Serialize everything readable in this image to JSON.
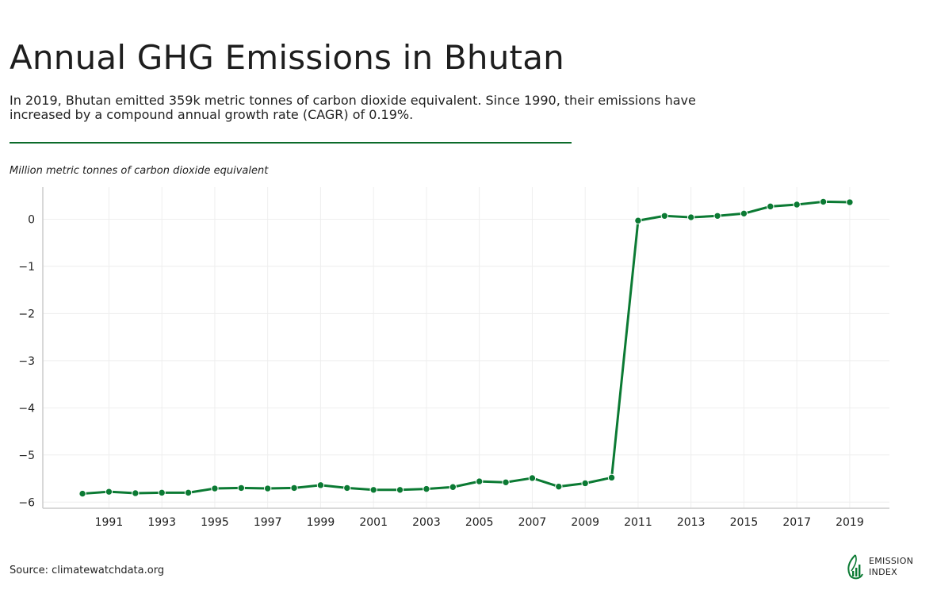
{
  "header": {
    "title": "Annual GHG Emissions in Bhutan",
    "subtitle": "In 2019, Bhutan emitted 359k metric tonnes of carbon dioxide equivalent. Since 1990, their emissions have increased by a compound annual growth rate (CAGR) of 0.19%.",
    "unit_label": "Million metric tonnes of carbon dioxide equivalent"
  },
  "footer": {
    "source": "Source: climatewatchdata.org",
    "brand_line1": "EMISSION",
    "brand_line2": "INDEX",
    "brand_icon": "leaf-chart-icon"
  },
  "colors": {
    "accent": "#0b7a33",
    "divider": "#0b6b2a",
    "grid": "#eeeeee",
    "axis": "#cccccc"
  },
  "chart_data": {
    "type": "line",
    "title": "",
    "xlabel": "",
    "ylabel": "Million metric tonnes of carbon dioxide equivalent",
    "x": [
      1990,
      1991,
      1992,
      1993,
      1994,
      1995,
      1996,
      1997,
      1998,
      1999,
      2000,
      2001,
      2002,
      2003,
      2004,
      2005,
      2006,
      2007,
      2008,
      2009,
      2010,
      2011,
      2012,
      2013,
      2014,
      2015,
      2016,
      2017,
      2018,
      2019
    ],
    "x_ticks": [
      1991,
      1993,
      1995,
      1997,
      1999,
      2001,
      2003,
      2005,
      2007,
      2009,
      2011,
      2013,
      2015,
      2017,
      2019
    ],
    "y_ticks": [
      0,
      -1,
      -2,
      -3,
      -4,
      -5,
      -6
    ],
    "y_tick_labels": [
      "0",
      "−1",
      "−2",
      "−3",
      "−4",
      "−5",
      "−6"
    ],
    "xlim": [
      1988.5,
      2020.5
    ],
    "ylim": [
      -6.13,
      0.68
    ],
    "grid": true,
    "series": [
      {
        "color": "#0b7a33",
        "values": [
          -5.82,
          -5.78,
          -5.81,
          -5.8,
          -5.8,
          -5.71,
          -5.7,
          -5.71,
          -5.7,
          -5.64,
          -5.7,
          -5.74,
          -5.74,
          -5.72,
          -5.68,
          -5.56,
          -5.58,
          -5.49,
          -5.67,
          -5.6,
          -5.48,
          -0.03,
          0.07,
          0.04,
          0.07,
          0.12,
          0.27,
          0.31,
          0.37,
          0.36
        ]
      }
    ]
  }
}
